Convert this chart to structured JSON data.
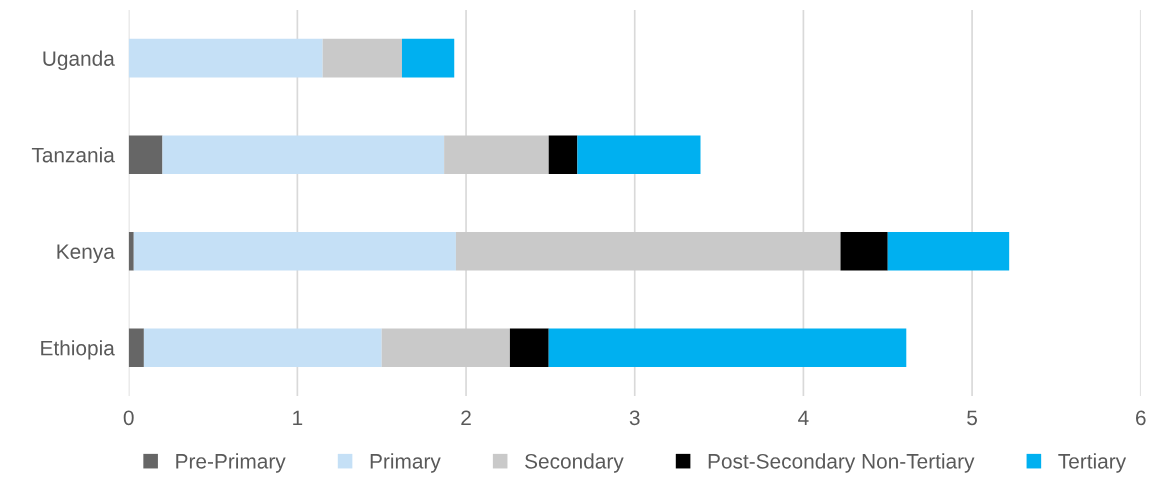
{
  "chart_data": {
    "type": "bar",
    "orientation": "horizontal",
    "stacked": true,
    "categories": [
      "Uganda",
      "Tanzania",
      "Kenya",
      "Ethiopia"
    ],
    "series": [
      {
        "name": "Pre-Primary",
        "color": "#666666",
        "values": [
          0,
          0.2,
          0.03,
          0.09
        ]
      },
      {
        "name": "Primary",
        "color": "#c5e0f6",
        "values": [
          1.15,
          1.67,
          1.91,
          1.41
        ]
      },
      {
        "name": "Secondary",
        "color": "#c9c9c9",
        "values": [
          0.47,
          0.62,
          2.28,
          0.76
        ]
      },
      {
        "name": "Post-Secondary Non-Tertiary",
        "color": "#000000",
        "values": [
          0,
          0.17,
          0.28,
          0.23
        ]
      },
      {
        "name": "Tertiary",
        "color": "#00b0f0",
        "values": [
          0.31,
          0.73,
          0.72,
          2.12
        ]
      }
    ],
    "xlim": [
      0,
      6
    ],
    "xticks": [
      0,
      1,
      2,
      3,
      4,
      5,
      6
    ],
    "grid": "x",
    "legend": "bottom"
  }
}
